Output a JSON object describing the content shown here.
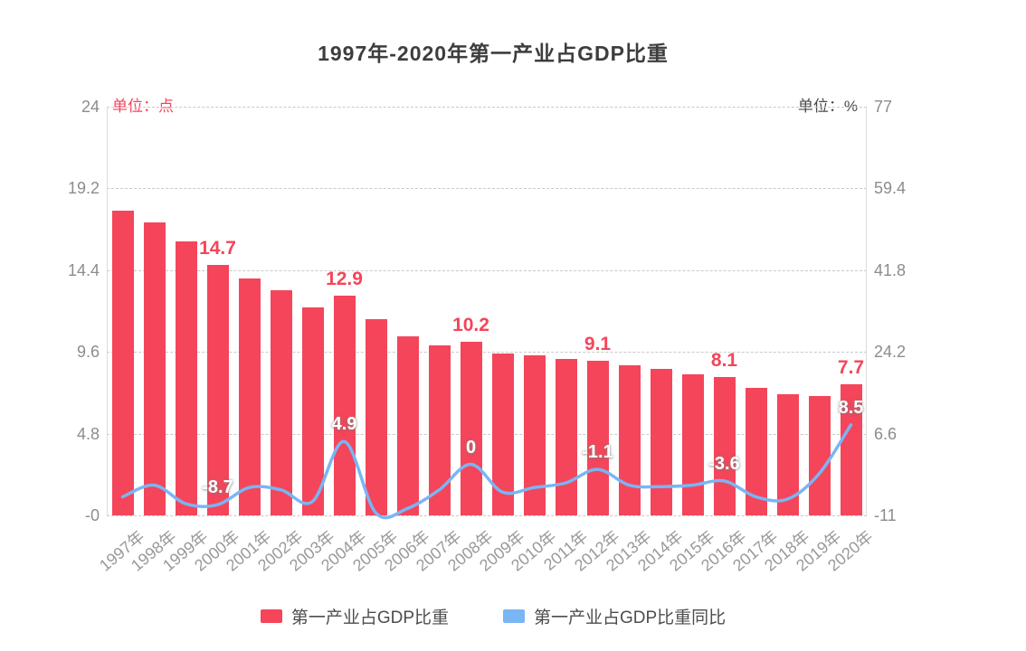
{
  "chart_data": {
    "type": "bar+line",
    "title": "1997年-2020年第一产业占GDP比重",
    "left_axis": {
      "unit_label": "单位：点",
      "ticks": [
        "24",
        "19.2",
        "14.4",
        "9.6",
        "4.8",
        "-0"
      ],
      "min": 0,
      "max": 24
    },
    "right_axis": {
      "unit_label": "单位：%",
      "ticks": [
        "77",
        "59.4",
        "41.8",
        "24.2",
        "6.6",
        "-11"
      ],
      "min": -11,
      "max": 77
    },
    "categories": [
      "1997年",
      "1998年",
      "1999年",
      "2000年",
      "2001年",
      "2002年",
      "2003年",
      "2004年",
      "2005年",
      "2006年",
      "2007年",
      "2008年",
      "2009年",
      "2010年",
      "2011年",
      "2012年",
      "2013年",
      "2014年",
      "2015年",
      "2016年",
      "2017年",
      "2018年",
      "2019年",
      "2020年"
    ],
    "series": [
      {
        "name": "第一产业占GDP比重",
        "type": "bar",
        "color": "#f4455a",
        "values": [
          17.9,
          17.2,
          16.1,
          14.7,
          13.9,
          13.2,
          12.2,
          12.9,
          11.5,
          10.5,
          10.0,
          10.2,
          9.5,
          9.4,
          9.2,
          9.1,
          8.8,
          8.6,
          8.3,
          8.1,
          7.5,
          7.1,
          7.0,
          7.7
        ],
        "labels": {
          "2000年": "14.7",
          "2004年": "12.9",
          "2008年": "10.2",
          "2012年": "9.1",
          "2016年": "8.1",
          "2020年": "7.7"
        }
      },
      {
        "name": "第一产业占GDP比重同比",
        "type": "line",
        "color": "#7ab5f4",
        "values": [
          -7.0,
          -4.5,
          -8.5,
          -8.7,
          -5.0,
          -5.5,
          -8.0,
          4.9,
          -10.5,
          -9.5,
          -5.5,
          0,
          -6.0,
          -5.0,
          -4.0,
          -1.1,
          -4.5,
          -4.8,
          -4.5,
          -3.6,
          -7.0,
          -7.5,
          -2.0,
          8.5
        ],
        "labels": {
          "2000年": "-8.7",
          "2004年": "4.9",
          "2008年": "0",
          "2012年": "-1.1",
          "2016年": "-3.6",
          "2020年": "8.5"
        }
      }
    ],
    "legend": [
      "第一产业占GDP比重",
      "第一产业占GDP比重同比"
    ],
    "grid": "dashed-horizontal"
  }
}
